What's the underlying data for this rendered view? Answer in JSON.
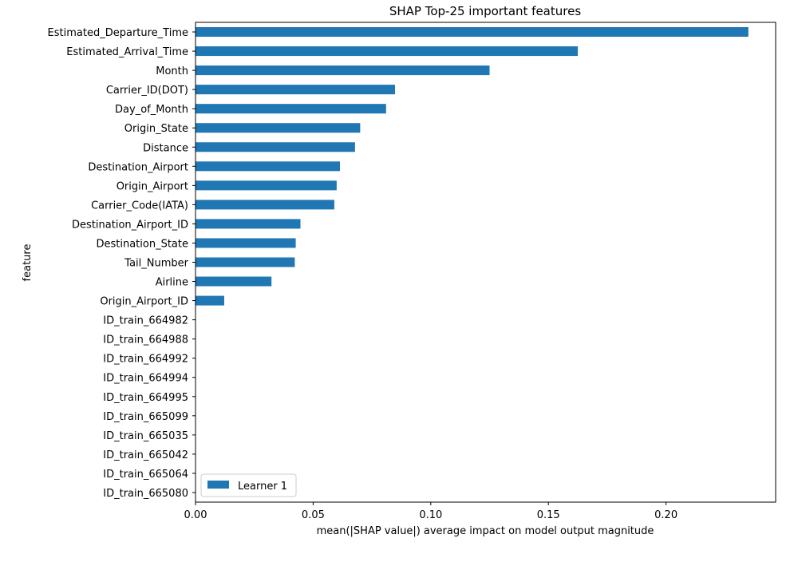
{
  "chart_data": {
    "type": "bar",
    "orientation": "horizontal",
    "title": "SHAP Top-25 important features",
    "xlabel": "mean(|SHAP value|) average impact on model output magnitude",
    "ylabel": "feature",
    "xlim": [
      0,
      0.2466
    ],
    "xticks": [
      0.0,
      0.05,
      0.1,
      0.15,
      0.2
    ],
    "xtick_labels": [
      "0.00",
      "0.05",
      "0.10",
      "0.15",
      "0.20"
    ],
    "grid": false,
    "legend_position": "lower-left",
    "bar_color": "#1f77b4",
    "categories": [
      "Estimated_Departure_Time",
      "Estimated_Arrival_Time",
      "Month",
      "Carrier_ID(DOT)",
      "Day_of_Month",
      "Origin_State",
      "Distance",
      "Destination_Airport",
      "Origin_Airport",
      "Carrier_Code(IATA)",
      "Destination_Airport_ID",
      "Destination_State",
      "Tail_Number",
      "Airline",
      "Origin_Airport_ID",
      "ID_train_664982",
      "ID_train_664988",
      "ID_train_664992",
      "ID_train_664994",
      "ID_train_664995",
      "ID_train_665099",
      "ID_train_665035",
      "ID_train_665042",
      "ID_train_665064",
      "ID_train_665080"
    ],
    "series": [
      {
        "name": "Learner 1",
        "color": "#1f77b4",
        "values": [
          0.235,
          0.1625,
          0.125,
          0.0848,
          0.081,
          0.07,
          0.0678,
          0.0614,
          0.06,
          0.059,
          0.0446,
          0.0426,
          0.0422,
          0.0323,
          0.0122,
          0,
          0,
          0,
          0,
          0,
          0,
          0,
          0,
          0,
          0
        ]
      }
    ]
  }
}
